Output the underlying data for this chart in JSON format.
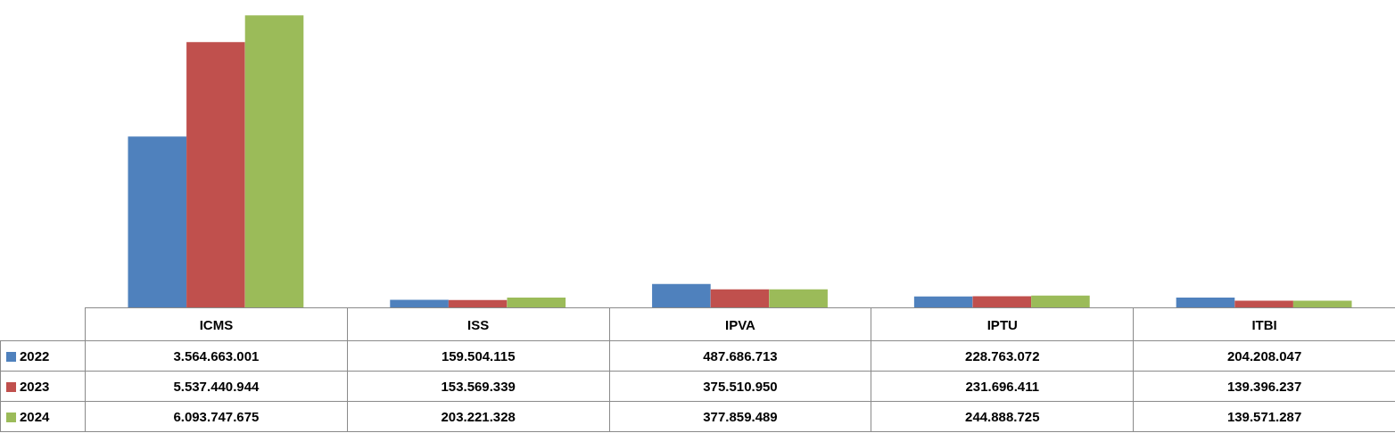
{
  "chart_data": {
    "type": "bar",
    "categories": [
      "ICMS",
      "ISS",
      "IPVA",
      "IPTU",
      "ITBI"
    ],
    "legend": "bottom left",
    "grid": false,
    "series": [
      {
        "name": "2022",
        "color": "#4f81bd",
        "values": [
          3564663001,
          159504115,
          487686713,
          228763072,
          204208047
        ],
        "value_labels": [
          "3.564.663.001",
          "159.504.115",
          "487.686.713",
          "228.763.072",
          "204.208.047"
        ]
      },
      {
        "name": "2023",
        "color": "#c0504d",
        "values": [
          5537440944,
          153569339,
          375510950,
          231696411,
          139396237
        ],
        "value_labels": [
          "5.537.440.944",
          "153.569.339",
          "375.510.950",
          "231.696.411",
          "139.396.237"
        ]
      },
      {
        "name": "2024",
        "color": "#9bbb59",
        "values": [
          6093747675,
          203221328,
          377859489,
          244888725,
          139571287
        ],
        "value_labels": [
          "6.093.747.675",
          "203.221.328",
          "377.859.489",
          "244.888.725",
          "139.571.287"
        ]
      }
    ]
  }
}
